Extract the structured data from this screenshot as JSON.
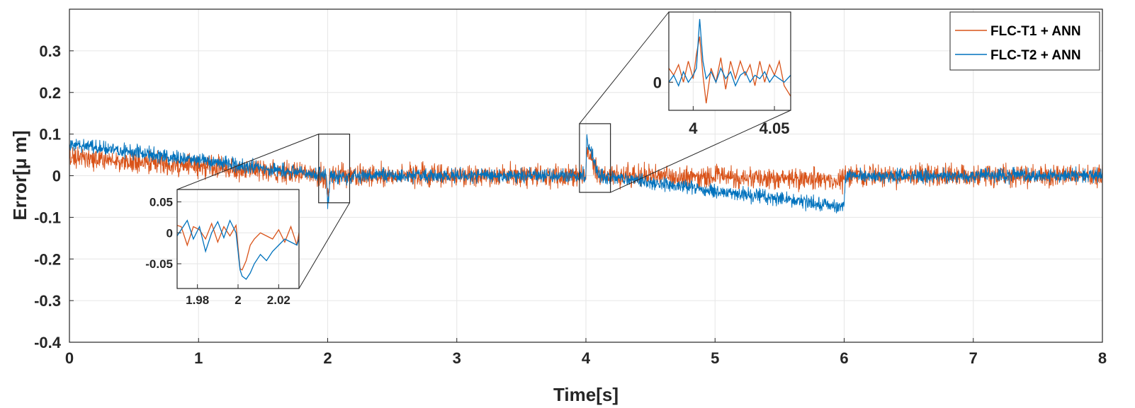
{
  "colors": {
    "series1": "#d95319",
    "series2": "#0072bd",
    "grid": "#e6e6e6",
    "axis": "#262626"
  },
  "chart_data": [
    {
      "type": "line",
      "id": "main",
      "xlabel": "Time[s]",
      "ylabel": "Error[μ m]",
      "xlim": [
        0,
        8
      ],
      "ylim": [
        -0.4,
        0.4
      ],
      "xticks": [
        0,
        1,
        2,
        3,
        4,
        5,
        6,
        7,
        8
      ],
      "xtick_labels": [
        "0",
        "1",
        "2",
        "3",
        "4",
        "5",
        "6",
        "7",
        "8"
      ],
      "yticks": [
        -0.4,
        -0.3,
        -0.2,
        -0.1,
        0,
        0.1,
        0.2,
        0.3
      ],
      "ytick_labels": [
        "-0.4",
        "-0.3",
        "-0.2",
        "-0.1",
        "0",
        "0.1",
        "0.2",
        "0.3"
      ],
      "grid": true,
      "legend_position": "top-right",
      "series": [
        {
          "name": "FLC-T1 + ANN",
          "color": "#d95319",
          "noise_amplitude": 0.022,
          "x": [
            0,
            1.99,
            2.0,
            2.008,
            2.02,
            4.0,
            4.005,
            4.1,
            6.0,
            6.01,
            8.0
          ],
          "y": [
            0.045,
            0.0,
            -0.06,
            -0.04,
            0.0,
            0.0,
            0.06,
            0.0,
            -0.01,
            0.0,
            0.0
          ]
        },
        {
          "name": "FLC-T2 + ANN",
          "color": "#0072bd",
          "noise_amplitude": 0.014,
          "x": [
            0,
            1.99,
            2.0,
            2.008,
            2.02,
            4.0,
            4.005,
            4.1,
            6.0,
            6.01,
            8.0
          ],
          "y": [
            0.075,
            0.0,
            -0.075,
            -0.05,
            0.0,
            0.0,
            0.09,
            0.0,
            -0.075,
            0.0,
            0.0
          ]
        }
      ]
    },
    {
      "type": "line",
      "id": "inset-2s",
      "xlim": [
        1.97,
        2.03
      ],
      "ylim": [
        -0.09,
        0.07
      ],
      "xticks": [
        1.98,
        2.0,
        2.02
      ],
      "xtick_labels": [
        "1.98",
        "2",
        "2.02"
      ],
      "yticks": [
        -0.05,
        0,
        0.05
      ],
      "ytick_labels": [
        "-0.05",
        "0",
        "0.05"
      ],
      "grid": true,
      "series": [
        {
          "name": "FLC-T1 + ANN",
          "color": "#d95319",
          "x": [
            1.97,
            1.972,
            1.975,
            1.978,
            1.981,
            1.984,
            1.987,
            1.99,
            1.993,
            1.996,
            1.999,
            2.001,
            2.002,
            2.004,
            2.006,
            2.008,
            2.011,
            2.014,
            2.017,
            2.02,
            2.023,
            2.026,
            2.029,
            2.03
          ],
          "y": [
            0.012,
            0.01,
            -0.02,
            0.01,
            0.005,
            -0.01,
            0.015,
            -0.015,
            0.01,
            -0.005,
            0.012,
            -0.058,
            -0.06,
            -0.045,
            -0.02,
            -0.01,
            0.0,
            -0.005,
            -0.01,
            0.005,
            -0.015,
            0.01,
            -0.02,
            0.0
          ]
        },
        {
          "name": "FLC-T2 + ANN",
          "color": "#0072bd",
          "x": [
            1.97,
            1.972,
            1.975,
            1.978,
            1.981,
            1.984,
            1.987,
            1.99,
            1.993,
            1.996,
            1.999,
            2.001,
            2.002,
            2.004,
            2.006,
            2.008,
            2.011,
            2.014,
            2.017,
            2.02,
            2.023,
            2.026,
            2.029,
            2.03
          ],
          "y": [
            -0.005,
            0.005,
            0.02,
            -0.01,
            0.01,
            -0.03,
            0.0,
            0.018,
            -0.008,
            0.02,
            0.0,
            -0.06,
            -0.07,
            -0.075,
            -0.065,
            -0.05,
            -0.035,
            -0.045,
            -0.03,
            -0.02,
            -0.01,
            -0.015,
            -0.02,
            -0.01
          ]
        }
      ]
    },
    {
      "type": "line",
      "id": "inset-4s",
      "xlim": [
        3.985,
        4.06
      ],
      "ylim": [
        -0.04,
        0.1
      ],
      "xticks": [
        4.0,
        4.05
      ],
      "xtick_labels": [
        "4",
        "4.05"
      ],
      "yticks": [
        0
      ],
      "ytick_labels": [
        "0"
      ],
      "grid": true,
      "series": [
        {
          "name": "FLC-T1 + ANN",
          "color": "#d95319",
          "x": [
            3.985,
            3.988,
            3.991,
            3.994,
            3.997,
            4.0,
            4.002,
            4.004,
            4.006,
            4.008,
            4.011,
            4.014,
            4.017,
            4.02,
            4.023,
            4.026,
            4.029,
            4.032,
            4.035,
            4.038,
            4.041,
            4.044,
            4.047,
            4.05,
            4.053,
            4.056,
            4.06
          ],
          "y": [
            0.02,
            0.01,
            0.025,
            0.0,
            0.03,
            0.005,
            0.04,
            0.065,
            0.01,
            -0.03,
            0.02,
            0.0,
            0.035,
            -0.01,
            0.03,
            0.005,
            0.03,
            0.01,
            0.025,
            -0.005,
            0.03,
            0.0,
            0.025,
            0.01,
            0.03,
            -0.005,
            -0.02
          ]
        },
        {
          "name": "FLC-T2 + ANN",
          "color": "#0072bd",
          "x": [
            3.985,
            3.988,
            3.991,
            3.994,
            3.997,
            4.0,
            4.002,
            4.004,
            4.006,
            4.008,
            4.011,
            4.014,
            4.017,
            4.02,
            4.023,
            4.026,
            4.029,
            4.032,
            4.035,
            4.038,
            4.041,
            4.044,
            4.047,
            4.05,
            4.053,
            4.056,
            4.06
          ],
          "y": [
            0.0,
            0.01,
            -0.005,
            0.015,
            0.0,
            0.01,
            0.02,
            0.09,
            0.03,
            0.005,
            0.015,
            0.0,
            0.02,
            0.005,
            0.015,
            -0.005,
            0.01,
            0.015,
            0.0,
            0.01,
            0.005,
            0.015,
            0.0,
            0.01,
            0.005,
            0.0,
            0.01
          ]
        }
      ]
    }
  ]
}
